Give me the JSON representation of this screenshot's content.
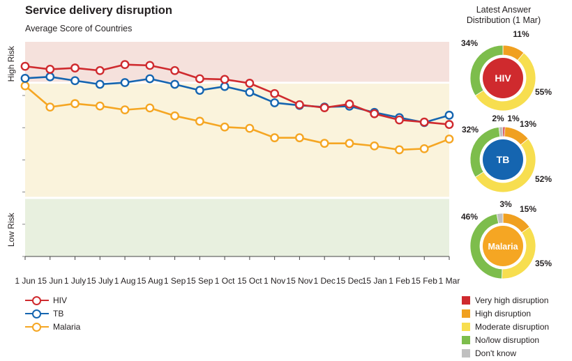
{
  "title": "Service delivery disruption",
  "subtitle": "Average Score of Countries",
  "donut_title_line1": "Latest Answer",
  "donut_title_line2": "Distribution (1 Mar)",
  "chart_data": [
    {
      "type": "line",
      "title": "Service delivery disruption",
      "subtitle": "Average Score of Countries",
      "x": [
        "1 Jun",
        "15 Jun",
        "1 July",
        "15 July",
        "1 Aug",
        "15 Aug",
        "1 Sep",
        "15 Sep",
        "1 Oct",
        "15 Oct",
        "1 Nov",
        "15 Nov",
        "1 Dec",
        "15 Dec",
        "15 Jan",
        "1 Feb",
        "15 Feb",
        "1 Mar"
      ],
      "ylim": [
        0,
        100
      ],
      "y_labels": {
        "high": "High Risk",
        "low": "Low Risk"
      },
      "bands": [
        {
          "label": "High Risk",
          "from": 81.4,
          "to": 100,
          "color": "#f5e1dc"
        },
        {
          "label": "",
          "from": 27.8,
          "to": 80.5,
          "color": "#faf3dc"
        },
        {
          "label": "Low Risk",
          "from": 0,
          "to": 26.8,
          "color": "#e8f0df"
        }
      ],
      "series": [
        {
          "name": "HIV",
          "color": "#cf2a2e",
          "values": [
            88.6,
            87.2,
            87.8,
            86.6,
            89.4,
            89.0,
            86.6,
            82.8,
            82.5,
            80.7,
            75.9,
            70.7,
            69.3,
            71.0,
            66.5,
            63.6,
            62.6,
            61.5
          ]
        },
        {
          "name": "TB",
          "color": "#1565b0",
          "values": [
            83.0,
            83.7,
            81.9,
            80.2,
            81.0,
            82.8,
            80.2,
            77.4,
            79.2,
            76.5,
            71.6,
            70.4,
            69.6,
            70.0,
            67.1,
            64.7,
            62.4,
            65.8
          ]
        },
        {
          "name": "Malaria",
          "color": "#f5a623",
          "values": [
            79.5,
            69.6,
            71.2,
            70.1,
            68.3,
            69.2,
            65.5,
            63.0,
            60.3,
            59.7,
            55.3,
            55.3,
            52.7,
            52.7,
            51.5,
            49.7,
            50.2,
            54.7
          ]
        }
      ]
    },
    {
      "type": "pie",
      "title": "Latest Answer Distribution (1 Mar)",
      "legend": [
        {
          "name": "Very high disruption",
          "color": "#cf2a2e"
        },
        {
          "name": "High disruption",
          "color": "#f0a020"
        },
        {
          "name": "Moderate disruption",
          "color": "#f7de4f"
        },
        {
          "name": "No/low disruption",
          "color": "#7dbd4c"
        },
        {
          "name": "Don't know",
          "color": "#c0c0c0"
        }
      ],
      "donuts": [
        {
          "name": "HIV",
          "center_color": "#cf2a2e",
          "slices": [
            {
              "category": "High disruption",
              "value": 11,
              "label": "11%"
            },
            {
              "category": "Moderate disruption",
              "value": 55,
              "label": "55%"
            },
            {
              "category": "No/low disruption",
              "value": 34,
              "label": "34%"
            }
          ]
        },
        {
          "name": "TB",
          "center_color": "#1565b0",
          "slices": [
            {
              "category": "Very high disruption",
              "value": 1,
              "label": "1%"
            },
            {
              "category": "High disruption",
              "value": 13,
              "label": "13%"
            },
            {
              "category": "Moderate disruption",
              "value": 52,
              "label": "52%"
            },
            {
              "category": "No/low disruption",
              "value": 32,
              "label": "32%"
            },
            {
              "category": "Don't know",
              "value": 2,
              "label": "2%"
            }
          ]
        },
        {
          "name": "Malaria",
          "center_color": "#f5a623",
          "slices": [
            {
              "category": "High disruption",
              "value": 15,
              "label": "15%"
            },
            {
              "category": "Moderate disruption",
              "value": 35,
              "label": "35%"
            },
            {
              "category": "No/low disruption",
              "value": 46,
              "label": "46%"
            },
            {
              "category": "Don't know",
              "value": 3,
              "label": "3%"
            }
          ]
        }
      ]
    }
  ]
}
